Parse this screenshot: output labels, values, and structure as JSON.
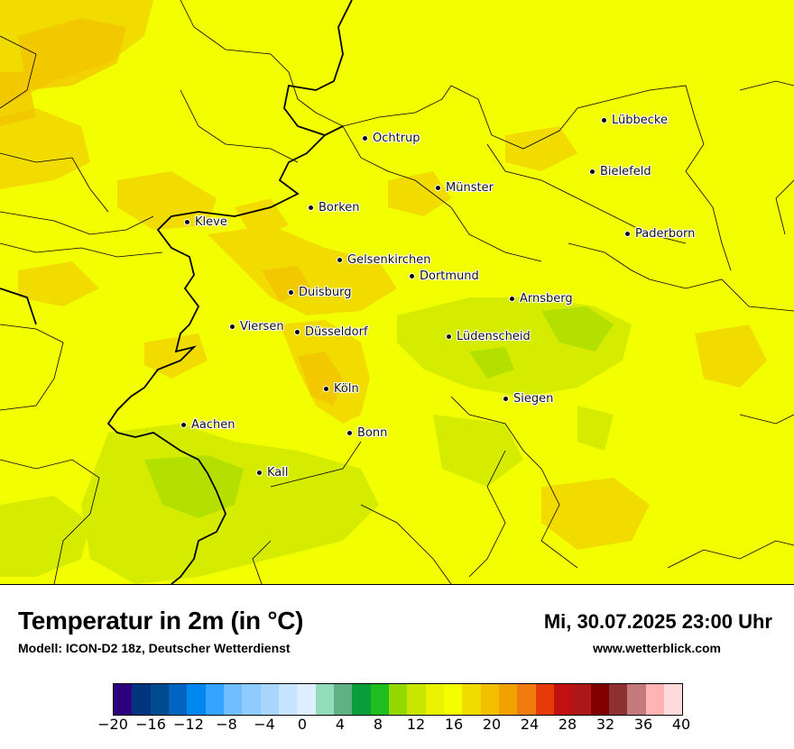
{
  "title": "Temperatur in 2m (in °C)",
  "model": "Modell: ICON-D2 18z, Deutscher Wetterdienst",
  "datetime": "Mi, 30.07.2025 23:00 Uhr",
  "website": "www.wetterblick.com",
  "cities": [
    {
      "name": "Lübbecke"
    },
    {
      "name": "Ochtrup"
    },
    {
      "name": "Bielefeld"
    },
    {
      "name": "Münster"
    },
    {
      "name": "Kleve"
    },
    {
      "name": "Borken"
    },
    {
      "name": "Paderborn"
    },
    {
      "name": "Gelsenkirchen"
    },
    {
      "name": "Dortmund"
    },
    {
      "name": "Duisburg"
    },
    {
      "name": "Arnsberg"
    },
    {
      "name": "Viersen"
    },
    {
      "name": "Düsseldorf"
    },
    {
      "name": "Lüdenscheid"
    },
    {
      "name": "Köln"
    },
    {
      "name": "Siegen"
    },
    {
      "name": "Aachen"
    },
    {
      "name": "Bonn"
    },
    {
      "name": "Kall"
    }
  ],
  "legend": {
    "colors": [
      "#2d007f",
      "#00347e",
      "#004a8f",
      "#0064c0",
      "#0088f0",
      "#35a4ff",
      "#6fbdff",
      "#8ecbff",
      "#a9d6ff",
      "#c6e3ff",
      "#dceeff",
      "#92dcba",
      "#5fb084",
      "#0a9e3a",
      "#1fbe1f",
      "#93d900",
      "#c7e600",
      "#eaf200",
      "#f3ff00",
      "#f2dc00",
      "#f2c000",
      "#f2a200",
      "#f27b10",
      "#e83a08",
      "#c01010",
      "#ad1717",
      "#800000",
      "#8c3030",
      "#c47a7a",
      "#ffb4b4",
      "#ffdada"
    ],
    "ticks": [
      "−20",
      "−16",
      "−12",
      "−8",
      "−4",
      "0",
      "4",
      "8",
      "12",
      "16",
      "20",
      "24",
      "28",
      "32",
      "36",
      "40"
    ]
  }
}
